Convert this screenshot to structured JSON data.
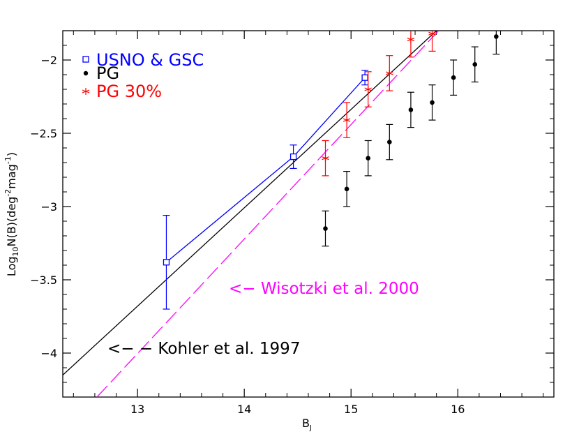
{
  "chart_data": {
    "type": "scatter",
    "xlabel": "B",
    "xlabel_sub": "J",
    "ylabel_parts": [
      "Log",
      "10",
      "N(B)(deg",
      "-2",
      "mag",
      "-1",
      ")"
    ],
    "xlim": [
      12.3,
      16.9
    ],
    "ylim": [
      -4.3,
      -1.8
    ],
    "x_ticks": [
      13,
      14,
      15,
      16
    ],
    "x_tick_labels": [
      "13",
      "14",
      "15",
      "16"
    ],
    "y_ticks": [
      -2,
      -2.5,
      -3,
      -3.5,
      -4
    ],
    "y_tick_labels": [
      "−2",
      "−2.5",
      "−3",
      "−3.5",
      "−4"
    ],
    "colors": {
      "usno": "#0000ff",
      "pg": "#000000",
      "pg30": "#ff0000",
      "wisotzki": "#ff00ff",
      "kohler": "#000000"
    },
    "legend": [
      {
        "label": "USNO & GSC",
        "marker": "square",
        "color": "#0000ff"
      },
      {
        "label": "PG",
        "marker": "dot",
        "color": "#000000"
      },
      {
        "label": "PG 30%",
        "marker": "star",
        "color": "#ff0000"
      }
    ],
    "series": [
      {
        "name": "USNO & GSC",
        "marker": "square",
        "connected": true,
        "x": [
          13.27,
          14.46,
          15.13
        ],
        "y": [
          -3.38,
          -2.66,
          -2.12
        ],
        "err": [
          0.32,
          0.08,
          0.05
        ]
      },
      {
        "name": "PG",
        "marker": "dot",
        "connected": false,
        "x": [
          14.76,
          14.96,
          15.16,
          15.36,
          15.56,
          15.76,
          15.96,
          16.16,
          16.36
        ],
        "y": [
          -3.15,
          -2.88,
          -2.67,
          -2.56,
          -2.34,
          -2.29,
          -2.12,
          -2.03,
          -1.84
        ],
        "err": [
          0.12,
          0.12,
          0.12,
          0.12,
          0.12,
          0.12,
          0.12,
          0.12,
          0.12
        ]
      },
      {
        "name": "PG 30%",
        "marker": "star",
        "connected": false,
        "x": [
          14.76,
          14.96,
          15.16,
          15.36,
          15.56,
          15.76
        ],
        "y": [
          -2.67,
          -2.41,
          -2.2,
          -2.09,
          -1.86,
          -1.82
        ],
        "err": [
          0.12,
          0.12,
          0.12,
          0.12,
          0.12,
          0.12
        ]
      }
    ],
    "lines": [
      {
        "name": "Kohler et al. 1997",
        "style": "solid",
        "color": "#000000",
        "x": [
          12.3,
          15.8
        ],
        "y": [
          -4.15,
          -1.8
        ]
      },
      {
        "name": "Wisotzki et al. 2000",
        "style": "dashed",
        "color": "#ff00ff",
        "x": [
          12.62,
          15.82
        ],
        "y": [
          -4.3,
          -1.8
        ]
      }
    ],
    "annotations": [
      {
        "text": "<− Wisotzki et al. 2000",
        "color": "#ff00ff",
        "x": 13.82,
        "y": -3.55
      },
      {
        "text": "<−  − Kohler et al. 1997",
        "color": "#000000",
        "x": 12.9,
        "y": -3.95
      }
    ]
  }
}
